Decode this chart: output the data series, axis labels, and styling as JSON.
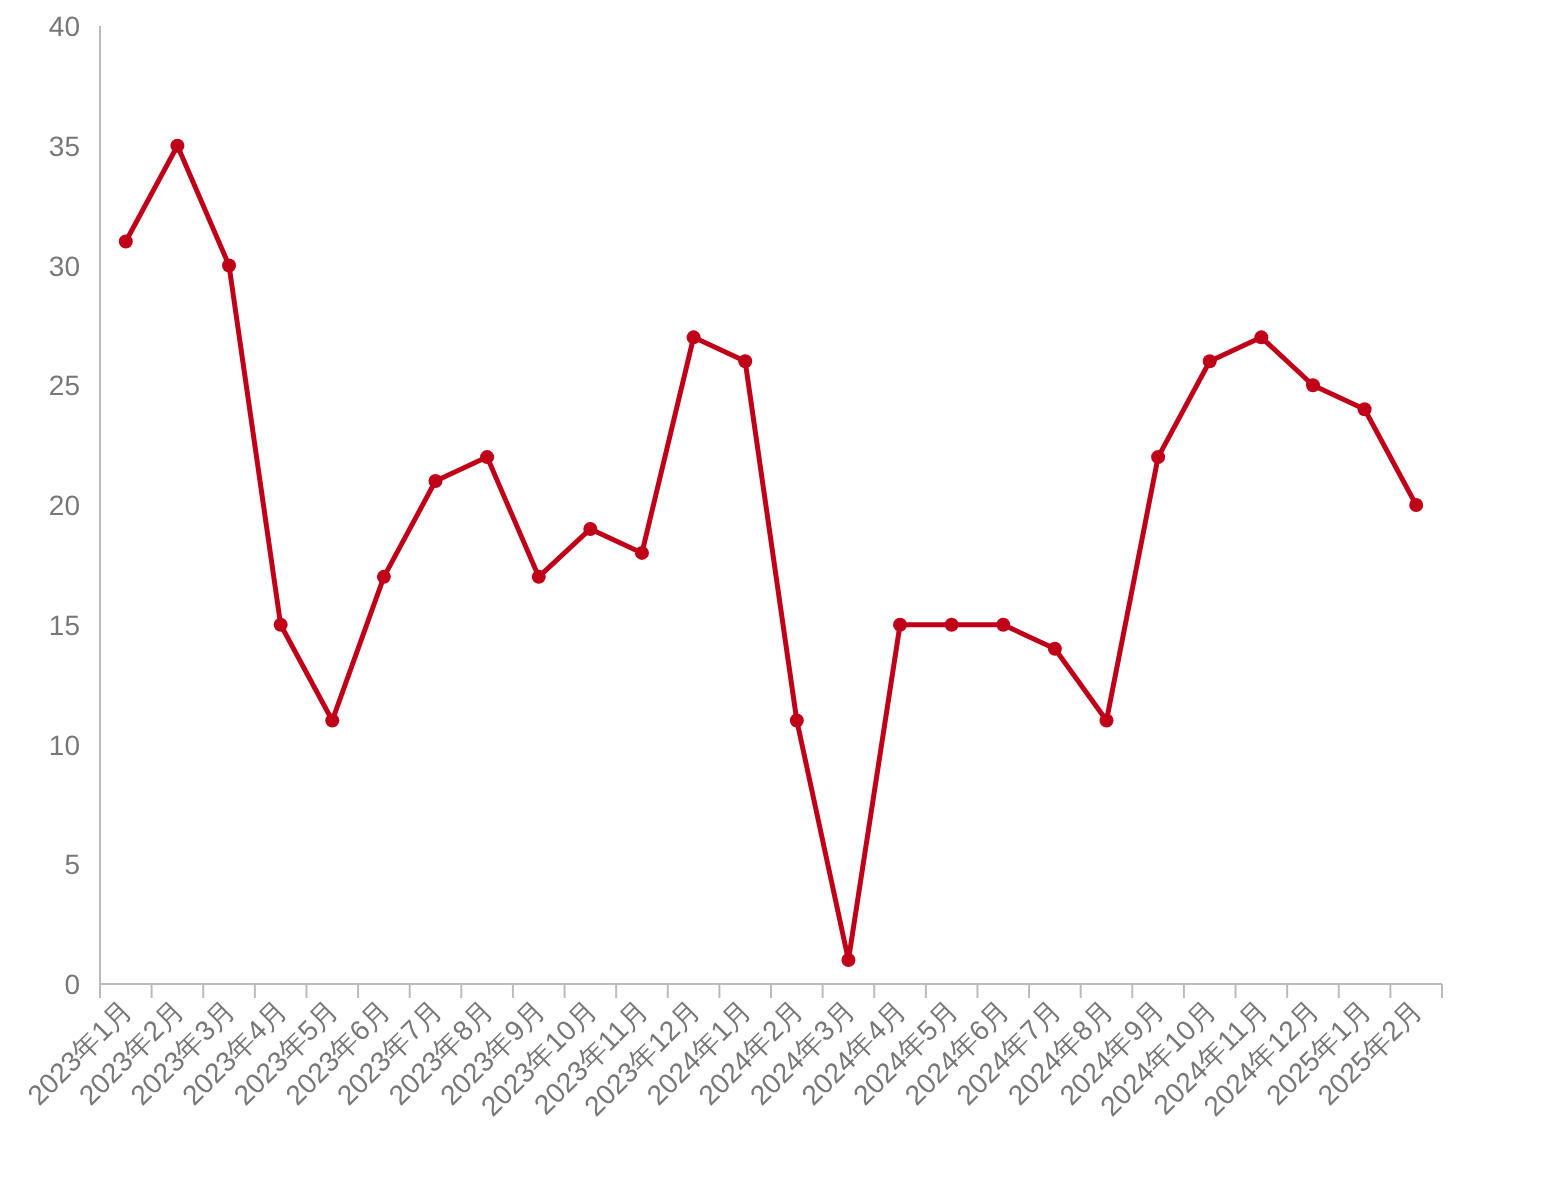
{
  "chart_data": {
    "type": "line",
    "categories": [
      "2023年1月",
      "2023年2月",
      "2023年3月",
      "2023年4月",
      "2023年5月",
      "2023年6月",
      "2023年7月",
      "2023年8月",
      "2023年9月",
      "2023年10月",
      "2023年11月",
      "2023年12月",
      "2024年1月",
      "2024年2月",
      "2024年3月",
      "2024年4月",
      "2024年5月",
      "2024年6月",
      "2024年7月",
      "2024年8月",
      "2024年9月",
      "2024年10月",
      "2024年11月",
      "2024年12月",
      "2025年1月",
      "2025年2月"
    ],
    "series": [
      {
        "color": "#c00018",
        "values": [
          31,
          35,
          30,
          15,
          11,
          17,
          21,
          22,
          17,
          19,
          18,
          27,
          26,
          11,
          1,
          15,
          15,
          15,
          14,
          11,
          22,
          26,
          27,
          25,
          24,
          20
        ]
      }
    ],
    "ylim": [
      0,
      40
    ],
    "yticks": [
      0,
      5,
      10,
      15,
      20,
      25,
      30,
      35,
      40
    ],
    "grid": false,
    "marker": "circle",
    "line_style": "solid"
  }
}
